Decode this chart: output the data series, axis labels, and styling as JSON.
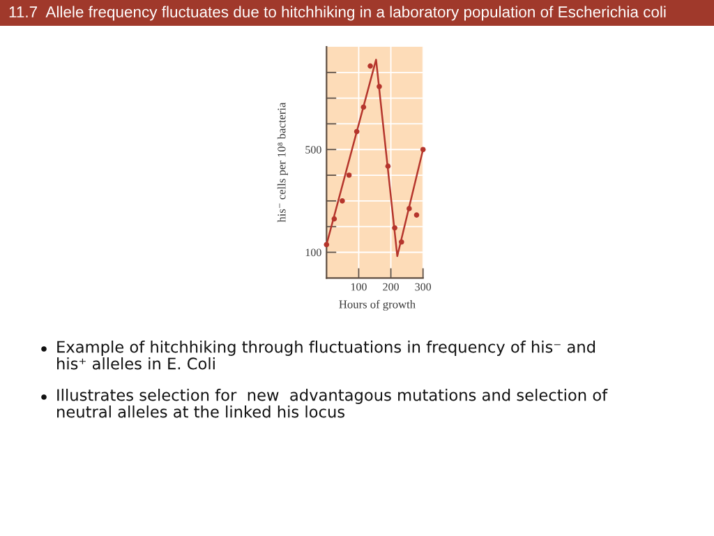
{
  "chart_data": {
    "type": "scatter",
    "title": "11.7  Allele frequency fluctuates due to hitchhiking in a laboratory population of Escherichia coli",
    "xlabel": "Hours of growth",
    "ylabel": "his⁻ cells per 10⁸ bacteria",
    "xlim": [
      0,
      300
    ],
    "ylim": [
      0,
      900
    ],
    "xticks": [
      100,
      200,
      300
    ],
    "yticks": [
      {
        "value": 100,
        "label": "100"
      },
      {
        "value": 200,
        "label": null
      },
      {
        "value": 300,
        "label": null
      },
      {
        "value": 400,
        "label": null
      },
      {
        "value": 500,
        "label": "500"
      },
      {
        "value": 600,
        "label": null
      },
      {
        "value": 700,
        "label": null
      },
      {
        "value": 800,
        "label": null
      }
    ],
    "grid": true,
    "series": [
      {
        "color": "#b5352c",
        "marker": "circle",
        "x": [
          0,
          24,
          49,
          70,
          94,
          115,
          136,
          164,
          191,
          212,
          233,
          257,
          280,
          300
        ],
        "values": [
          130,
          230,
          300,
          400,
          570,
          665,
          825,
          745,
          435,
          195,
          140,
          270,
          245,
          500
        ]
      },
      {
        "type": "line",
        "color": "#b5352c",
        "line_style": "solid",
        "x": [
          0,
          154,
          220,
          300
        ],
        "values": [
          130,
          850,
          85,
          500
        ]
      }
    ],
    "annotations": [
      "Example of hitchhiking through fluctuations in frequency of his⁻ and\nhis⁺ alleles in E. Coli",
      "Illustrates selection for  new  advantagous mutations and selection of\nneutral alleles at the linked his locus"
    ]
  }
}
